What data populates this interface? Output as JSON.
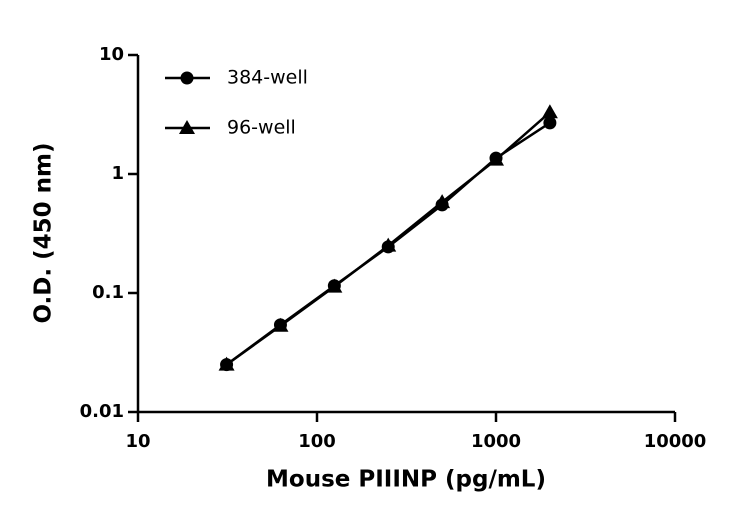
{
  "chart_data": {
    "type": "line",
    "x_label": "Mouse PIIINP (pg/mL)",
    "y_label": "O.D. (450 nm)",
    "x": [
      31.25,
      62.5,
      125,
      250,
      500,
      1000,
      2000
    ],
    "series": [
      {
        "name": "384-well",
        "color": "#000000",
        "marker": "circle",
        "values": [
          0.025,
          0.054,
          0.115,
          0.244,
          0.55,
          1.36,
          2.69
        ]
      },
      {
        "name": "96-well",
        "color": "#000000",
        "marker": "triangle",
        "values": [
          0.025,
          0.053,
          0.113,
          0.25,
          0.58,
          1.32,
          3.3
        ]
      }
    ],
    "x_log": true,
    "y_log": true,
    "xlim": [
      10,
      10000
    ],
    "xticks": [
      10,
      100,
      1000,
      10000
    ],
    "ylim": [
      0.01,
      10
    ],
    "yticks": [
      0.01,
      0.1,
      1,
      10
    ],
    "legend": "top-left"
  }
}
